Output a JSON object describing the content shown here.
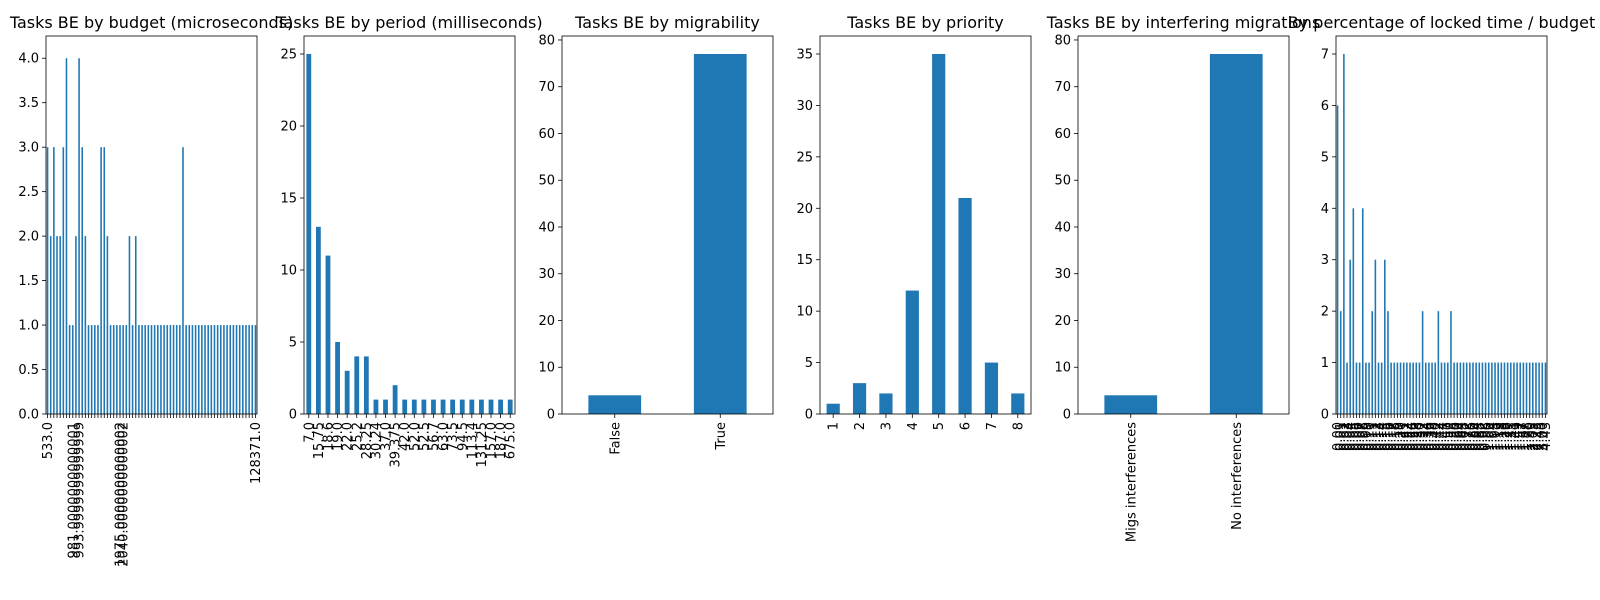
{
  "bar_color": "#1f77b4",
  "chart_data": [
    {
      "type": "bar",
      "title": "Tasks BE by budget (microseconds)",
      "xlabel": "",
      "ylabel": "",
      "ylim": [
        0,
        4.25
      ],
      "yticks": [
        "0.0",
        "0.5",
        "1.0",
        "1.5",
        "2.0",
        "2.5",
        "3.0",
        "3.5",
        "4.0"
      ],
      "categories": [
        "533.0",
        "",
        "",
        "",
        "",
        "",
        "",
        "",
        "981.0000000000001",
        "",
        "993.9999999999999",
        "",
        "",
        "",
        "",
        "",
        "",
        "",
        "",
        "",
        "",
        "",
        "",
        "1975.0000000000002",
        "2040.0000000000002",
        "",
        "",
        "",
        "",
        "",
        "",
        "",
        "",
        "",
        "",
        "",
        "",
        "",
        "",
        "",
        "",
        "",
        "",
        "",
        "",
        "",
        "",
        "",
        "",
        "",
        "",
        "",
        "",
        "",
        "",
        "",
        "",
        "",
        "",
        "",
        "",
        "",
        "",
        "",
        "",
        "",
        "128371.0"
      ],
      "values": [
        3,
        2,
        3,
        2,
        2,
        3,
        4,
        1,
        1,
        2,
        4,
        3,
        2,
        1,
        1,
        1,
        1,
        3,
        3,
        2,
        1,
        1,
        1,
        1,
        1,
        1,
        2,
        1,
        2,
        1,
        1,
        1,
        1,
        1,
        1,
        1,
        1,
        1,
        1,
        1,
        1,
        1,
        1,
        3,
        1,
        1,
        1,
        1,
        1,
        1,
        1,
        1,
        1,
        1,
        1,
        1,
        1,
        1,
        1,
        1,
        1,
        1,
        1,
        1,
        1,
        1,
        1
      ]
    },
    {
      "type": "bar",
      "title": "Tasks BE by period (milliseconds)",
      "xlabel": "",
      "ylabel": "",
      "ylim": [
        0,
        26.25
      ],
      "yticks": [
        "0",
        "5",
        "10",
        "15",
        "20",
        "25"
      ],
      "categories": [
        "7.0",
        "15.75",
        "18.6",
        "19.0",
        "22.0",
        "25.2",
        "28.25",
        "30.24",
        "37.0",
        "39.375",
        "42.0",
        "52.0",
        "52.5",
        "56.7",
        "63.0",
        "73.5",
        "94.5",
        "113.4",
        "131.25",
        "157.0",
        "187.0",
        "675.0"
      ],
      "values": [
        25,
        13,
        11,
        5,
        3,
        4,
        4,
        1,
        1,
        2,
        1,
        1,
        1,
        1,
        1,
        1,
        1,
        1,
        1,
        1,
        1,
        1
      ]
    },
    {
      "type": "bar",
      "title": "Tasks BE by migrability",
      "xlabel": "",
      "ylabel": "",
      "ylim": [
        0,
        80.85
      ],
      "yticks": [
        "0",
        "10",
        "20",
        "30",
        "40",
        "50",
        "60",
        "70",
        "80"
      ],
      "categories": [
        "False",
        "True"
      ],
      "values": [
        4,
        77
      ]
    },
    {
      "type": "bar",
      "title": "Tasks BE by priority",
      "xlabel": "",
      "ylabel": "",
      "ylim": [
        0,
        36.75
      ],
      "yticks": [
        "0",
        "5",
        "10",
        "15",
        "20",
        "25",
        "30",
        "35"
      ],
      "categories": [
        "1",
        "2",
        "3",
        "4",
        "5",
        "6",
        "7",
        "8"
      ],
      "values": [
        1,
        3,
        2,
        12,
        35,
        21,
        5,
        2
      ]
    },
    {
      "type": "bar",
      "title": "Tasks BE by interfering migrations",
      "xlabel": "",
      "ylabel": "",
      "ylim": [
        0,
        80.85
      ],
      "yticks": [
        "0",
        "10",
        "20",
        "30",
        "40",
        "50",
        "60",
        "70",
        "80"
      ],
      "categories": [
        "Migs interferences",
        "No interferences"
      ],
      "values": [
        4,
        77
      ]
    },
    {
      "type": "bar",
      "title": "By percentage of locked time / budget",
      "xlabel": "",
      "ylabel": "",
      "ylim": [
        0,
        7.35
      ],
      "yticks": [
        "0",
        "1",
        "2",
        "3",
        "4",
        "5",
        "6",
        "7"
      ],
      "categories": [
        "0.00",
        "0.01",
        "0.02",
        "0.03",
        "0.04",
        "0.05",
        "0.06",
        "0.07",
        "0.08",
        "0.09",
        "0.10",
        "0.11",
        "0.12",
        "0.13",
        "0.14",
        "0.15",
        "0.16",
        "0.17",
        "0.18",
        "0.19",
        "0.20",
        "0.21",
        "0.22",
        "0.24",
        "0.26",
        "0.28",
        "0.30",
        "0.32",
        "0.34",
        "0.36",
        "0.38",
        "0.40",
        "0.42",
        "0.44",
        "0.47",
        "0.50",
        "0.53",
        "0.56",
        "0.60",
        "0.64",
        "0.68",
        "0.72",
        "0.76",
        "0.80",
        "0.84",
        "0.88",
        "0.92",
        "0.96",
        "1.00",
        "1.04",
        "1.08",
        "1.13",
        "1.18",
        "1.23",
        "1.29",
        "1.35",
        "1.41",
        "1.49",
        "1.57",
        "1.67",
        "1.78",
        "1.90",
        "2.05",
        "2.23",
        "2.45",
        "3.00",
        "4.43"
      ],
      "values": [
        6,
        2,
        7,
        1,
        3,
        4,
        1,
        1,
        4,
        1,
        1,
        2,
        3,
        1,
        1,
        3,
        2,
        1,
        1,
        1,
        1,
        1,
        1,
        1,
        1,
        1,
        1,
        2,
        1,
        1,
        1,
        1,
        2,
        1,
        1,
        1,
        2,
        1,
        1,
        1,
        1,
        1,
        1,
        1,
        1,
        1,
        1,
        1,
        1,
        1,
        1,
        1,
        1,
        1,
        1,
        1,
        1,
        1,
        1,
        1,
        1,
        1,
        1,
        1,
        1,
        1,
        1
      ]
    }
  ]
}
